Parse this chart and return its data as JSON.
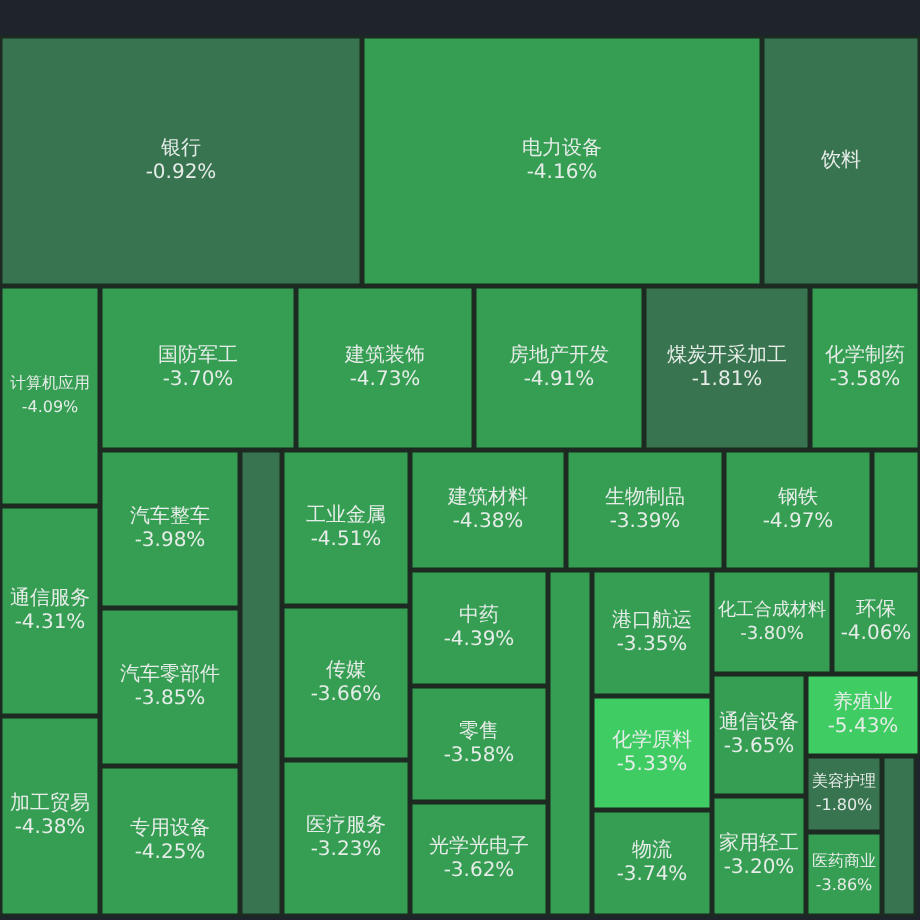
{
  "chart_data": {
    "type": "other",
    "categories": [
      "银行",
      "电力设备",
      "饮料",
      "计算机应用",
      "国防军工",
      "建筑装饰",
      "房地产开发",
      "煤炭开采加工",
      "化学制药",
      "通信服务",
      "加工贸易",
      "汽车整车",
      "汽车零部件",
      "专用设备",
      null,
      "工业金属",
      "传媒",
      "医疗服务",
      "建筑材料",
      "生物制品",
      "钢铁",
      null,
      "中药",
      "零售",
      "光学光电子",
      null,
      "港口航运",
      "化学原料",
      "物流",
      "化工合成材料",
      "环保",
      "通信设备",
      "家用轻工",
      "养殖业",
      "美容护理",
      "医药商业",
      null
    ],
    "values": [
      -0.92,
      -4.16,
      null,
      -4.09,
      -3.7,
      -4.73,
      -4.91,
      -1.81,
      -3.58,
      -4.31,
      -4.38,
      -3.98,
      -3.85,
      -4.25,
      null,
      -4.51,
      -3.66,
      -3.23,
      -4.38,
      -3.39,
      -4.97,
      null,
      -4.39,
      -3.58,
      -3.62,
      null,
      -3.35,
      -5.33,
      -3.74,
      -3.8,
      -4.06,
      -3.65,
      -3.2,
      -5.43,
      -1.8,
      -3.86,
      null
    ],
    "value_labels": [
      "-0.92%",
      "-4.16%",
      null,
      "-4.09%",
      "-3.70%",
      "-4.73%",
      "-4.91%",
      "-1.81%",
      "-3.58%",
      "-4.31%",
      "-4.38%",
      "-3.98%",
      "-3.85%",
      "-4.25%",
      null,
      "-4.51%",
      "-3.66%",
      "-3.23%",
      "-4.38%",
      "-3.39%",
      "-4.97%",
      null,
      "-4.39%",
      "-3.58%",
      "-3.62%",
      null,
      "-3.35%",
      "-5.33%",
      "-3.74%",
      "-3.80%",
      "-4.06%",
      "-3.65%",
      "-3.20%",
      "-5.43%",
      "-1.80%",
      "-3.86%",
      null
    ],
    "colors": [
      "#38744f",
      "#359e53",
      "#38744f",
      "#359e53",
      "#359e53",
      "#359e53",
      "#359e53",
      "#38744f",
      "#359e53",
      "#359e53",
      "#359e53",
      "#359e53",
      "#359e53",
      "#359e53",
      "#38744f",
      "#359e53",
      "#359e53",
      "#359e53",
      "#359e53",
      "#359e53",
      "#359e53",
      "#359e53",
      "#359e53",
      "#359e53",
      "#359e53",
      "#359e53",
      "#359e53",
      "#3ecc63",
      "#359e53",
      "#359e53",
      "#359e53",
      "#359e53",
      "#359e53",
      "#3ecc63",
      "#38744f",
      "#359e53",
      "#38744f"
    ]
  }
}
